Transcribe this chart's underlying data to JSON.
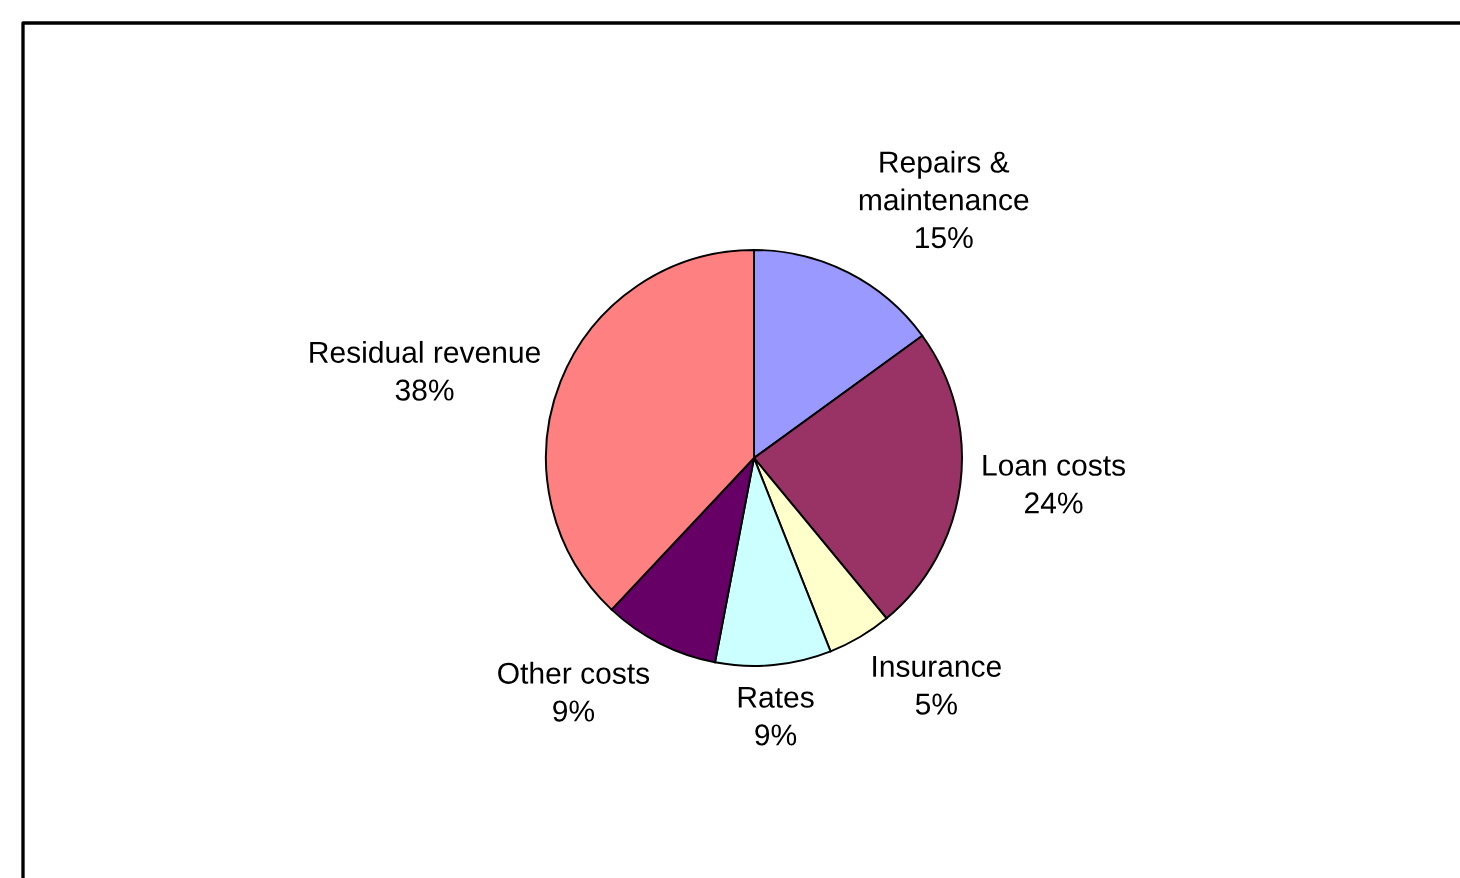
{
  "chart_data": {
    "type": "pie",
    "categories": [
      "Repairs &\nmaintenance",
      "Loan costs",
      "Insurance",
      "Rates",
      "Other costs",
      "Residual revenue"
    ],
    "values": [
      15,
      24,
      5,
      9,
      9,
      38
    ],
    "colors": [
      "#9999ff",
      "#993366",
      "#ffffcc",
      "#ccffff",
      "#660066",
      "#ff8080"
    ],
    "value_labels": [
      "15%",
      "24%",
      "5%",
      "9%",
      "9%",
      "38%"
    ]
  }
}
